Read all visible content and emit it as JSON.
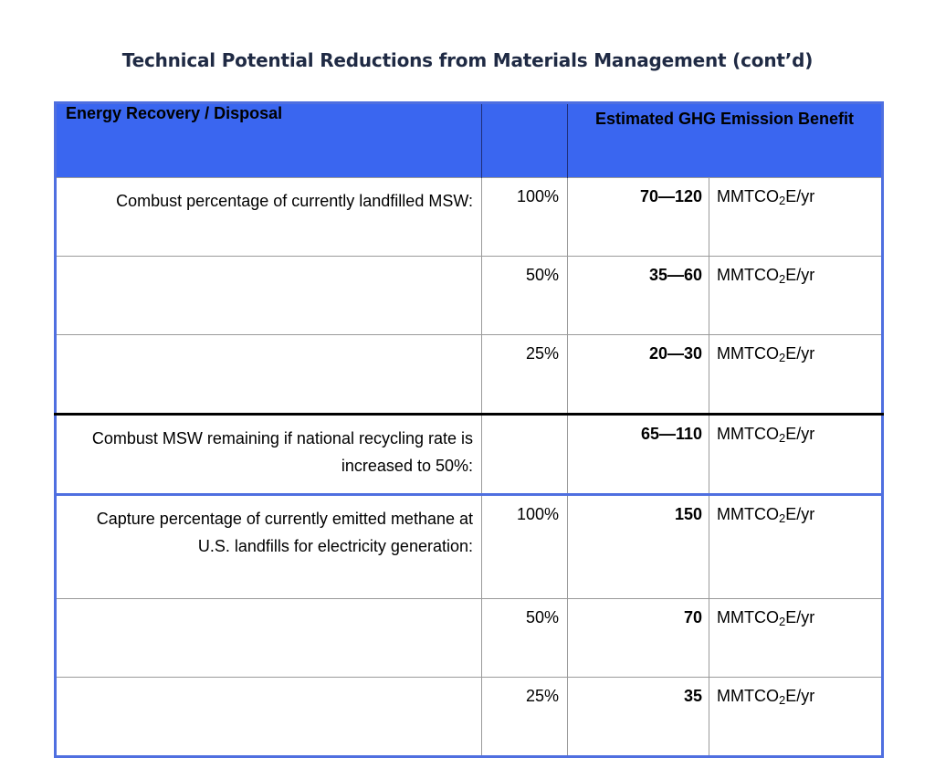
{
  "title": "Technical Potential Reductions from Materials Management (cont’d)",
  "table": {
    "headers": {
      "category": "Energy Recovery / Disposal",
      "percent": "",
      "benefit": "Estimated GHG Emission Benefit"
    },
    "unit": {
      "prefix": "MMTCO",
      "subscript": "2",
      "suffix": "E/yr"
    },
    "rows": [
      {
        "description": "Combust percentage of currently landfilled MSW:",
        "percent": "100%",
        "value": "70—120"
      },
      {
        "description": "",
        "percent": "50%",
        "value": "35—60"
      },
      {
        "description": "",
        "percent": "25%",
        "value": "20—30"
      },
      {
        "description": "Combust MSW remaining if national recycling rate is increased to 50%:",
        "percent": "",
        "value": "65—110"
      },
      {
        "description": "Capture percentage of currently emitted methane at U.S. landfills for electricity generation:",
        "percent": "100%",
        "value": "150"
      },
      {
        "description": "",
        "percent": "50%",
        "value": "70"
      },
      {
        "description": "",
        "percent": "25%",
        "value": "35"
      }
    ]
  }
}
